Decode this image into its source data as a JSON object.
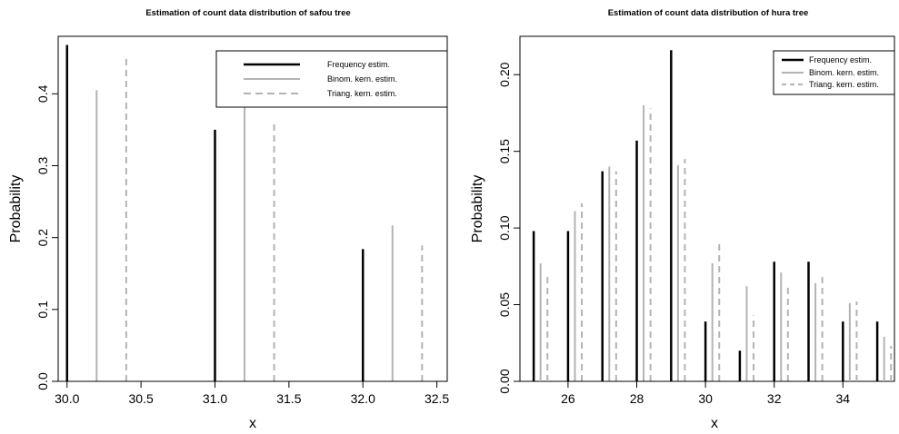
{
  "chart_data": [
    {
      "type": "bar",
      "title": "Estimation of count data distribution of safou tree",
      "xlabel": "x",
      "ylabel": "Probability",
      "xlim": [
        29.94,
        32.57
      ],
      "ylim": [
        0.0,
        0.48
      ],
      "xticks": [
        30.0,
        30.5,
        31.0,
        31.5,
        32.0,
        32.5
      ],
      "xtick_labels": [
        "30.0",
        "30.5",
        "31.0",
        "31.5",
        "32.0",
        "32.5"
      ],
      "yticks": [
        0.0,
        0.1,
        0.2,
        0.3,
        0.4
      ],
      "ytick_labels": [
        "0.0",
        "0.1",
        "0.2",
        "0.3",
        "0.4"
      ],
      "grid": false,
      "legend_position": "top-right",
      "x": [
        30,
        31,
        32
      ],
      "offset_step": 0.2,
      "series": [
        {
          "name": "Frequency estim.",
          "values": [
            0.468,
            0.35,
            0.184
          ],
          "color": "#000000",
          "style": "solid"
        },
        {
          "name": "Binom. kern. estim.",
          "values": [
            0.405,
            0.383,
            0.217
          ],
          "color": "#b3b3b3",
          "style": "solid"
        },
        {
          "name": "Triang. kern. estim.",
          "values": [
            0.449,
            0.362,
            0.189
          ],
          "color": "#b3b3b3",
          "style": "dashed"
        }
      ]
    },
    {
      "type": "bar",
      "title": "Estimation of count data distribution of hura tree",
      "xlabel": "x",
      "ylabel": "Probability",
      "xlim": [
        24.6,
        35.5
      ],
      "ylim": [
        0.0,
        0.225
      ],
      "xticks": [
        26,
        28,
        30,
        32,
        34
      ],
      "xtick_labels": [
        "26",
        "28",
        "30",
        "32",
        "34"
      ],
      "yticks": [
        0.0,
        0.05,
        0.1,
        0.15,
        0.2
      ],
      "ytick_labels": [
        "0.00",
        "0.05",
        "0.10",
        "0.15",
        "0.20"
      ],
      "grid": false,
      "legend_position": "top-right",
      "x": [
        25,
        26,
        27,
        28,
        29,
        30,
        31,
        32,
        33,
        34,
        35
      ],
      "offset_step": 0.2,
      "series": [
        {
          "name": "Frequency estim.",
          "values": [
            0.098,
            0.098,
            0.137,
            0.157,
            0.216,
            0.039,
            0.02,
            0.078,
            0.078,
            0.039,
            0.039
          ],
          "color": "#000000",
          "style": "solid"
        },
        {
          "name": "Binom. kern. estim.",
          "values": [
            0.077,
            0.111,
            0.14,
            0.18,
            0.141,
            0.077,
            0.062,
            0.071,
            0.064,
            0.051,
            0.029
          ],
          "color": "#b3b3b3",
          "style": "solid"
        },
        {
          "name": "Triang. kern. estim.",
          "values": [
            0.069,
            0.116,
            0.137,
            0.178,
            0.145,
            0.09,
            0.043,
            0.062,
            0.069,
            0.052,
            0.023
          ],
          "color": "#b3b3b3",
          "style": "dashed"
        }
      ]
    }
  ]
}
